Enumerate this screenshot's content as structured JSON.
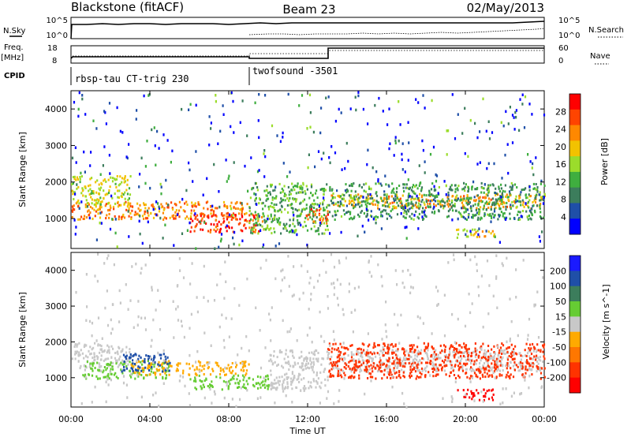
{
  "header": {
    "radar": "Blackstone (fitACF)",
    "beam": "Beam 23",
    "date": "02/May/2013"
  },
  "left_labels": {
    "nsky": "N.Sky",
    "freq": "Freq.",
    "freq_unit": "[MHz]",
    "cpid": "CPID"
  },
  "right_labels": {
    "nsearch": "N.Search",
    "nave": "Nave"
  },
  "noise_panel": {
    "left_ticks": [
      "10^5",
      "10^0"
    ],
    "right_ticks": [
      "10^5",
      "10^0"
    ]
  },
  "freq_panel": {
    "left_ticks": [
      "18",
      "8"
    ],
    "right_ticks": [
      "60",
      "0"
    ]
  },
  "cpid_panel": {
    "segments": [
      {
        "label": "rbsp-tau CT-trig 230",
        "start_hour": 0,
        "end_hour": 9.0
      },
      {
        "label": "twofsound -3501",
        "start_hour": 9.0,
        "end_hour": 24
      }
    ]
  },
  "colors": {
    "power_scale": [
      "#0000ff",
      "#1f4fa8",
      "#3c7d5c",
      "#3fae3f",
      "#9bdc2b",
      "#f2c200",
      "#ff8800",
      "#ff4400",
      "#ff0000"
    ],
    "velocity_scale": [
      "#1a1aff",
      "#1f4fa8",
      "#3c7d5c",
      "#66cc33",
      "#c8c8c8",
      "#ffaa00",
      "#ff7700",
      "#ff3300",
      "#ff0000"
    ]
  },
  "chart_data": [
    {
      "type": "heatmap",
      "panel": "power",
      "title": "",
      "xlabel": "Time UT",
      "ylabel": "Slant Range [km]",
      "x_ticks": [
        "00:00",
        "04:00",
        "08:00",
        "12:00",
        "16:00",
        "20:00",
        "00:00"
      ],
      "y_ticks": [
        "1000",
        "2000",
        "3000",
        "4000"
      ],
      "xlim_hours": [
        0,
        24
      ],
      "ylim_km": [
        180,
        4500
      ],
      "colorbar": {
        "label": "Power [dB]",
        "ticks": [
          "28",
          "24",
          "20",
          "16",
          "12",
          "8",
          "4"
        ],
        "range": [
          0,
          30
        ]
      },
      "scatter_regions": [
        {
          "t0": 0.0,
          "t1": 9.0,
          "r0": 1000,
          "r1": 1500,
          "value": 22
        },
        {
          "t0": 0.0,
          "t1": 3.0,
          "r0": 1400,
          "r1": 2200,
          "value": 16
        },
        {
          "t0": 6.0,
          "t1": 9.8,
          "r0": 650,
          "r1": 1150,
          "value": 26
        },
        {
          "t0": 9.0,
          "t1": 13.0,
          "r0": 600,
          "r1": 2000,
          "value": 12
        },
        {
          "t0": 11.8,
          "t1": 13.0,
          "r0": 900,
          "r1": 1300,
          "value": 24
        },
        {
          "t0": 13.0,
          "t1": 24.0,
          "r0": 1300,
          "r1": 1700,
          "value": 20
        },
        {
          "t0": 13.0,
          "t1": 24.0,
          "r0": 1000,
          "r1": 2000,
          "value": 10
        },
        {
          "t0": 19.5,
          "t1": 21.5,
          "r0": 500,
          "r1": 750,
          "value": 18
        },
        {
          "t0": 0.0,
          "t1": 24.0,
          "r0": 200,
          "r1": 4500,
          "value": 5
        }
      ]
    },
    {
      "type": "heatmap",
      "panel": "velocity",
      "title": "",
      "xlabel": "Time UT",
      "ylabel": "Slant Range [km]",
      "x_ticks": [
        "00:00",
        "04:00",
        "08:00",
        "12:00",
        "16:00",
        "20:00",
        "00:00"
      ],
      "y_ticks": [
        "1000",
        "2000",
        "3000",
        "4000"
      ],
      "xlim_hours": [
        0,
        24
      ],
      "ylim_km": [
        180,
        4500
      ],
      "colorbar": {
        "label": "Velocity [m s^-1]",
        "ticks": [
          "200",
          "100",
          "50",
          "15",
          "-15",
          "-50",
          "-100",
          "-200"
        ],
        "range": [
          -250,
          250
        ]
      },
      "scatter_regions": [
        {
          "t0": 0.0,
          "t1": 3.0,
          "r0": 1300,
          "r1": 2000,
          "value": 0
        },
        {
          "t0": 0.5,
          "t1": 5.0,
          "r0": 1000,
          "r1": 1500,
          "value": 40
        },
        {
          "t0": 3.0,
          "t1": 9.0,
          "r0": 1100,
          "r1": 1500,
          "value": -60
        },
        {
          "t0": 2.5,
          "t1": 5.0,
          "r0": 1200,
          "r1": 1700,
          "value": 170
        },
        {
          "t0": 6.0,
          "t1": 10.0,
          "r0": 700,
          "r1": 1100,
          "value": 50
        },
        {
          "t0": 10.0,
          "t1": 13.0,
          "r0": 700,
          "r1": 1800,
          "value": 20
        },
        {
          "t0": 13.0,
          "t1": 24.0,
          "r0": 1200,
          "r1": 1800,
          "value": 0
        },
        {
          "t0": 13.0,
          "t1": 24.0,
          "r0": 1000,
          "r1": 2000,
          "value": -150
        },
        {
          "t0": 19.5,
          "t1": 21.5,
          "r0": 400,
          "r1": 700,
          "value": -200
        },
        {
          "t0": 0.0,
          "t1": 24.0,
          "r0": 200,
          "r1": 4500,
          "value": 10
        }
      ]
    }
  ]
}
